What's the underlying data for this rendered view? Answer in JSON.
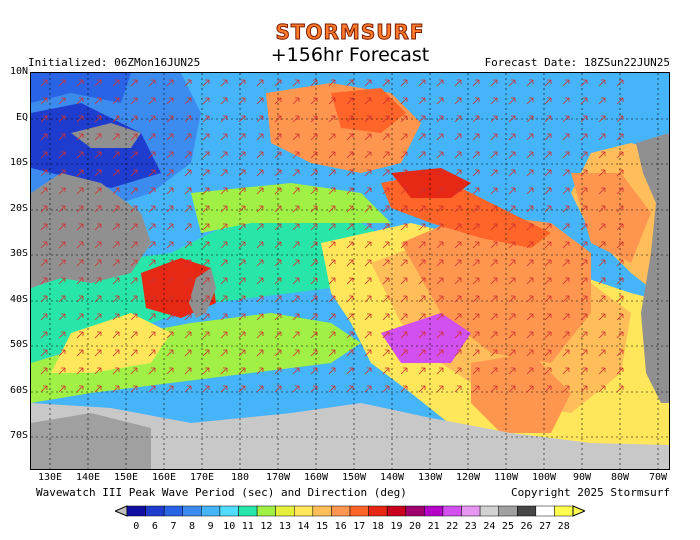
{
  "header": {
    "brand": "STORMSURF",
    "title": "+156hr Forecast",
    "initialized": "Initialized: 06ZMon16JUN25",
    "forecast_date": "Forecast Date: 18ZSun22JUN25"
  },
  "axes": {
    "lat_labels": [
      "10N",
      "EQ",
      "10S",
      "20S",
      "30S",
      "40S",
      "50S",
      "60S",
      "70S"
    ],
    "lon_labels": [
      "130E",
      "140E",
      "150E",
      "160E",
      "170E",
      "180",
      "170W",
      "160W",
      "150W",
      "140W",
      "130W",
      "120W",
      "110W",
      "100W",
      "90W",
      "80W",
      "70W"
    ]
  },
  "footer": {
    "description": "Wavewatch III Peak Wave Period (sec) and Direction (deg)",
    "copyright": "Copyright 2025 Stormsurf"
  },
  "legend": {
    "labels": [
      "0",
      "6",
      "7",
      "8",
      "9",
      "10",
      "11",
      "12",
      "13",
      "14",
      "15",
      "16",
      "17",
      "18",
      "19",
      "20",
      "21",
      "22",
      "23",
      "24",
      "25",
      "26",
      "27",
      "28"
    ],
    "colors": [
      "#1010a0",
      "#1e3ccd",
      "#2a64e6",
      "#3c8cf0",
      "#46b4f8",
      "#50dcff",
      "#28e6aa",
      "#a0f046",
      "#e6f03c",
      "#ffe65a",
      "#ffbe5a",
      "#ff9650",
      "#ff6428",
      "#e62814",
      "#c8001e",
      "#a0006e",
      "#b400c8",
      "#d250f0",
      "#e696f0",
      "#d2d2d2",
      "#a0a0a0",
      "#464646",
      "#ffffff",
      "#ffff50"
    ]
  },
  "map_data": {
    "type": "heatmap",
    "quantity": "Peak Wave Period",
    "unit": "sec",
    "lon_range": [
      "125E",
      "70W"
    ],
    "lat_range": [
      "10N",
      "78S"
    ],
    "regions": [
      {
        "area": "Sea south of Gulf of Alaska / North Pacific near 10N",
        "period_sec": 15
      },
      {
        "area": "South Pacific 10S-20S 130W-100W",
        "period_sec": 17
      },
      {
        "area": "Tasman Sea 35S-45S 160E",
        "period_sec": 17
      },
      {
        "area": "Southeast Pacific 40S-60S 110W",
        "period_sec": 14
      },
      {
        "area": "Southern Ocean 50S-65S",
        "period_sec": 12
      },
      {
        "area": "Coral Sea 10S-20S",
        "period_sec": 8
      }
    ]
  }
}
